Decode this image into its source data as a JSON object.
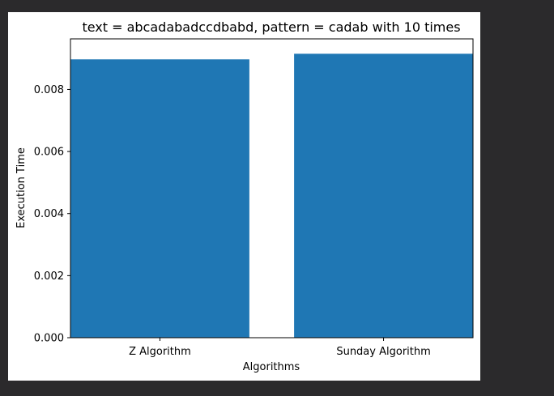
{
  "chart_data": {
    "type": "bar",
    "title": "text = abcadabadccdbabd, pattern = cadab  with 10 times",
    "xlabel": "Algorithms",
    "ylabel": "Execution Time",
    "categories": [
      "Z Algorithm",
      "Sunday Algorithm"
    ],
    "values": [
      0.00897,
      0.00915
    ],
    "ylim": [
      0,
      0.00963
    ],
    "yticks": [
      0.0,
      0.002,
      0.004,
      0.006,
      0.008
    ],
    "ytick_labels": [
      "0.000",
      "0.002",
      "0.004",
      "0.006",
      "0.008"
    ],
    "grid": false,
    "bar_color": "#1f77b4"
  },
  "colors": {
    "background": "#2b2a2c",
    "figure": "#ffffff"
  }
}
